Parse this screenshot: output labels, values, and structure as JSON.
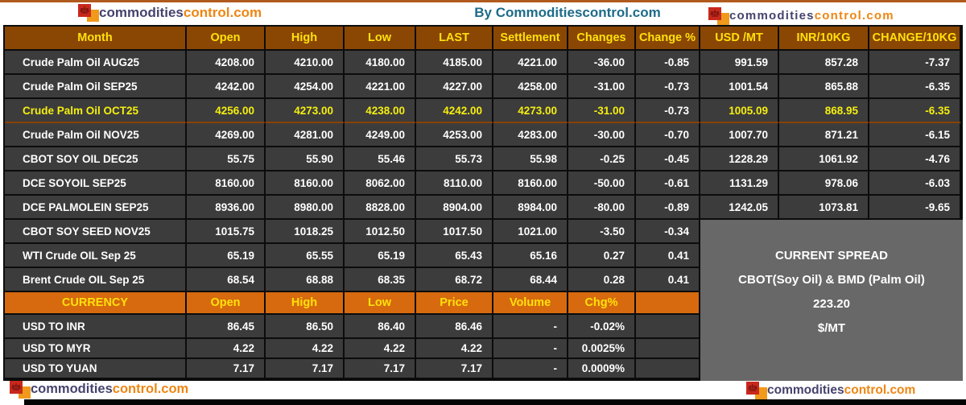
{
  "byline": "By Commoditiescontrol.com",
  "logo": {
    "part1": "commodities",
    "part2": "control.com"
  },
  "main_table": {
    "headers": [
      "Month",
      "Open",
      "High",
      "Low",
      "LAST",
      "Settlement",
      "Changes",
      "Change %",
      "USD /MT",
      "INR/10KG",
      "CHANGE/10KG"
    ],
    "rows": [
      {
        "month": "Crude Palm Oil AUG25",
        "highlight": false,
        "values": [
          "4208.00",
          "4210.00",
          "4180.00",
          "4185.00",
          "4221.00",
          "-36.00",
          "-0.85",
          "991.59",
          "857.28",
          "-7.37"
        ]
      },
      {
        "month": "Crude Palm Oil SEP25",
        "highlight": false,
        "values": [
          "4242.00",
          "4254.00",
          "4221.00",
          "4227.00",
          "4258.00",
          "-31.00",
          "-0.73",
          "1001.54",
          "865.88",
          "-6.35"
        ]
      },
      {
        "month": "Crude Palm Oil OCT25",
        "highlight": true,
        "values": [
          "4256.00",
          "4273.00",
          "4238.00",
          "4242.00",
          "4273.00",
          "-31.00",
          "-0.73",
          "1005.09",
          "868.95",
          "-6.35"
        ]
      },
      {
        "month": "Crude Palm Oil NOV25",
        "highlight": false,
        "values": [
          "4269.00",
          "4281.00",
          "4249.00",
          "4253.00",
          "4283.00",
          "-30.00",
          "-0.70",
          "1007.70",
          "871.21",
          "-6.15"
        ]
      },
      {
        "month": "CBOT SOY OIL DEC25",
        "highlight": false,
        "values": [
          "55.75",
          "55.90",
          "55.46",
          "55.73",
          "55.98",
          "-0.25",
          "-0.45",
          "1228.29",
          "1061.92",
          "-4.76"
        ]
      },
      {
        "month": "DCE SOYOIL SEP25",
        "highlight": false,
        "values": [
          "8160.00",
          "8160.00",
          "8062.00",
          "8110.00",
          "8160.00",
          "-50.00",
          "-0.61",
          "1131.29",
          "978.06",
          "-6.03"
        ]
      },
      {
        "month": "DCE PALMOLEIN SEP25",
        "highlight": false,
        "values": [
          "8936.00",
          "8980.00",
          "8828.00",
          "8904.00",
          "8984.00",
          "-80.00",
          "-0.89",
          "1242.05",
          "1073.81",
          "-9.65"
        ]
      },
      {
        "month": "CBOT SOY SEED NOV25",
        "highlight": false,
        "values": [
          "1015.75",
          "1018.25",
          "1012.50",
          "1017.50",
          "1021.00",
          "-3.50",
          "-0.34",
          "",
          "",
          ""
        ]
      },
      {
        "month": "WTI Crude OIL Sep 25",
        "highlight": false,
        "values": [
          "65.19",
          "65.55",
          "65.19",
          "65.43",
          "65.16",
          "0.27",
          "0.41",
          "",
          "",
          ""
        ]
      },
      {
        "month": "Brent Crude OIL Sep 25",
        "highlight": false,
        "values": [
          "68.54",
          "68.88",
          "68.35",
          "68.72",
          "68.44",
          "0.28",
          "0.41",
          "",
          "",
          ""
        ]
      }
    ]
  },
  "currency_table": {
    "headers": [
      "CURRENCY",
      "Open",
      "High",
      "Low",
      "Price",
      "Volume",
      "Chg%",
      ""
    ],
    "rows": [
      {
        "name": "USD TO INR",
        "values": [
          "86.45",
          "86.50",
          "86.40",
          "86.46",
          "-",
          "-0.02%",
          ""
        ]
      },
      {
        "name": "USD TO MYR",
        "values": [
          "4.22",
          "4.22",
          "4.22",
          "4.22",
          "-",
          "0.0025%",
          ""
        ]
      },
      {
        "name": "USD TO YUAN",
        "values": [
          "7.17",
          "7.17",
          "7.17",
          "7.17",
          "-",
          "0.0009%",
          ""
        ]
      }
    ]
  },
  "spread_box": {
    "line1": "CURRENT SPREAD",
    "line2": "CBOT(Soy Oil) & BMD (Palm Oil)",
    "line3": "223.20",
    "line4": "$/MT"
  },
  "colors": {
    "top_line": "#b05a1e",
    "header_bg": "#8a4704",
    "header_text": "#ffe10a",
    "currency_bg": "#d76a0e",
    "row_bg": "#3c3c3c",
    "border": "#0c0c0c",
    "highlight_text": "#f5ee0f",
    "highlight_border": "#8a4103",
    "spread_bg": "#686868",
    "byline": "#1d6b89",
    "logo_text1": "#45436d",
    "logo_text2": "#ee8613",
    "logo_red_sq": "#c9281c",
    "logo_orange_sq": "#f1991b",
    "bottom_bar": "#050505"
  }
}
